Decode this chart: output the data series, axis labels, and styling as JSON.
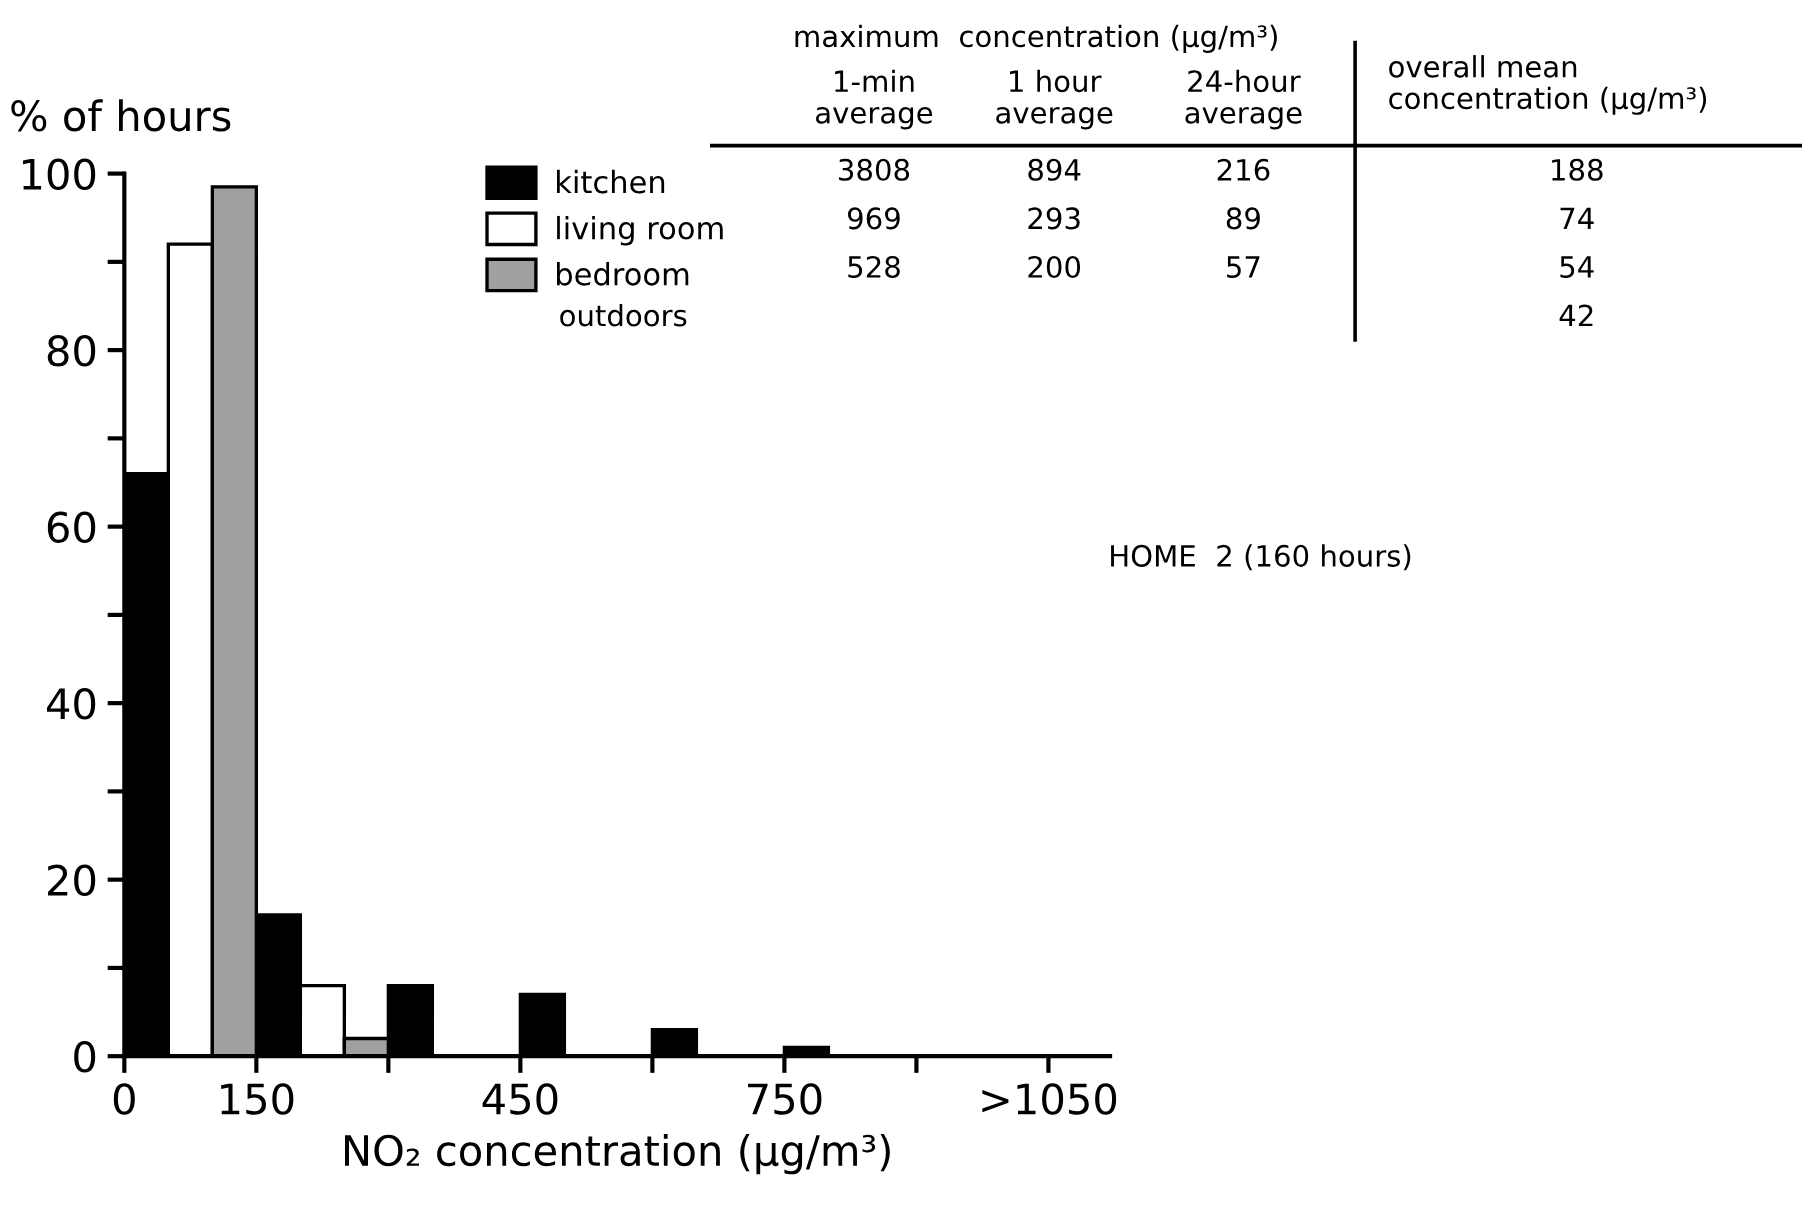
{
  "chart_data": {
    "type": "bar",
    "ylabel": "% of hours",
    "xlabel": "NO₂ concentration (μg/m³)",
    "series": [
      {
        "name": "kitchen",
        "color": "#000000",
        "x": [
          25,
          175,
          325,
          475,
          625,
          775
        ],
        "values": [
          66,
          16,
          8,
          7,
          3,
          1
        ]
      },
      {
        "name": "living room",
        "color": "#ffffff",
        "x": [
          75,
          225
        ],
        "values": [
          92,
          8
        ]
      },
      {
        "name": "bedroom",
        "color": "#a0a0a0",
        "x": [
          125,
          275
        ],
        "values": [
          98.5,
          2
        ]
      }
    ],
    "xlim": [
      0,
      1120
    ],
    "ylim": [
      0,
      100
    ],
    "xticks": [
      0,
      150,
      {
        "value": 300,
        "label": null
      },
      450,
      {
        "value": 600,
        "label": null
      },
      750,
      {
        "value": 900,
        "label": null
      },
      {
        "value": 1050,
        "label": ">1050"
      }
    ],
    "yticks": [
      0,
      {
        "value": 10,
        "label": null
      },
      20,
      {
        "value": 30,
        "label": null
      },
      40,
      {
        "value": 50,
        "label": null
      },
      60,
      {
        "value": 70,
        "label": null
      },
      80,
      {
        "value": 90,
        "label": null
      },
      100
    ],
    "grid": false,
    "legend": "top",
    "annotations": [
      "maximum  concentration (μg/m³)",
      "1-min\naverage",
      "1 hour\naverage",
      "24-hour\naverage",
      "overall mean\nconcentration (μg/m³)",
      "3808",
      "894",
      "216",
      "188",
      "969",
      "293",
      "89",
      "74",
      "528",
      "200",
      "57",
      "54",
      "outdoors",
      "42",
      "HOME  2 (160 hours)"
    ]
  }
}
